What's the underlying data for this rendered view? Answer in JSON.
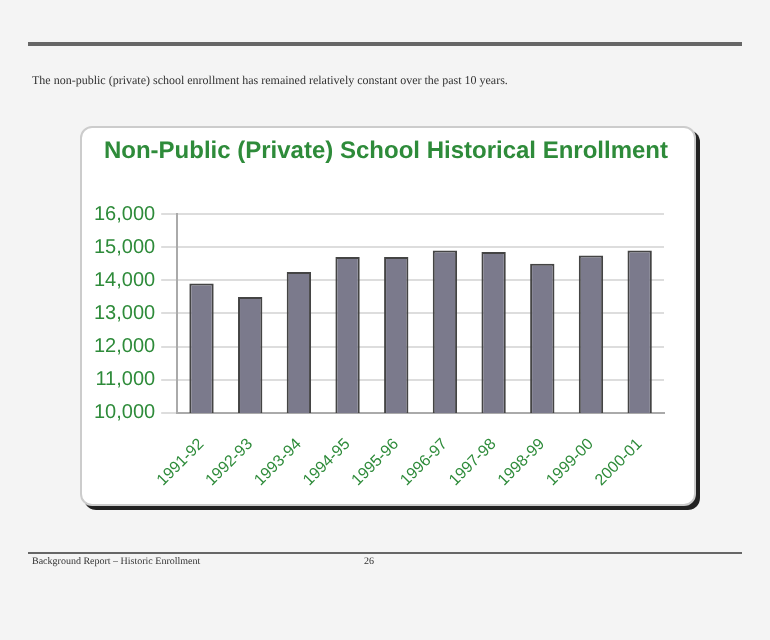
{
  "chart_data": {
    "type": "bar",
    "title": "Non-Public (Private) School Historical Enrollment",
    "categories": [
      "1991-92",
      "1992-93",
      "1993-94",
      "1994-95",
      "1995-96",
      "1996-97",
      "1997-98",
      "1998-99",
      "1999-00",
      "2000-01"
    ],
    "values": [
      13900,
      13500,
      14250,
      14700,
      14700,
      14900,
      14850,
      14500,
      14750,
      14900
    ],
    "color": "#7b7a8c",
    "ylim": [
      10000,
      16000
    ],
    "yticks": [
      {
        "value": 10000,
        "label": "10,000"
      },
      {
        "value": 11000,
        "label": "11,000"
      },
      {
        "value": 12000,
        "label": "12,000"
      },
      {
        "value": 13000,
        "label": "13,000"
      },
      {
        "value": 14000,
        "label": "14,000"
      },
      {
        "value": 15000,
        "label": "15,000"
      },
      {
        "value": 16000,
        "label": "16,000"
      }
    ],
    "grid": "y",
    "annotations": [
      "The non-public (private) school enrollment has remained relatively constant over the past 10 years.",
      "Background Report – Historic Enrollment",
      "26"
    ]
  }
}
